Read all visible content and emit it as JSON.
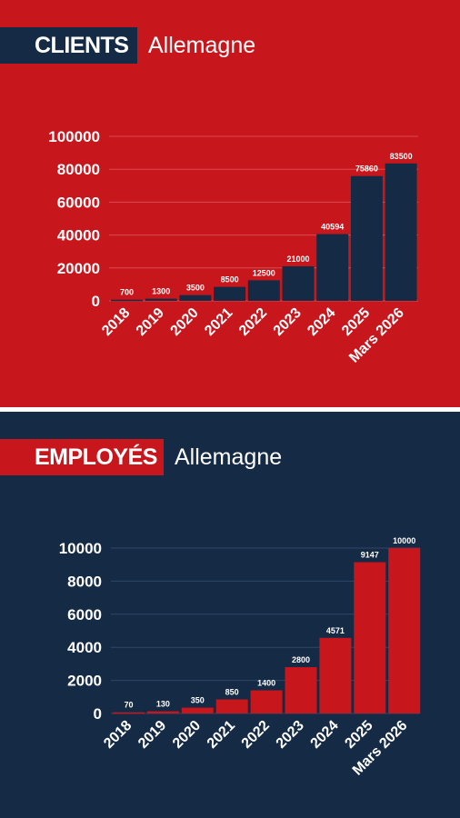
{
  "clients": {
    "title": "CLIENTS",
    "subtitle": "Allemagne",
    "colors": {
      "background": "#c8161d",
      "bar": "#152a45",
      "title_box": "#152a45",
      "text": "#ffffff",
      "grid": "#d94a4f"
    }
  },
  "employes": {
    "title": "EMPLOYÉS",
    "subtitle": "Allemagne",
    "colors": {
      "background": "#152a45",
      "bar": "#c8161d",
      "title_box": "#c8161d",
      "text": "#ffffff",
      "grid": "#2e4766"
    }
  },
  "chart_data": [
    {
      "type": "bar",
      "title": "CLIENTS Allemagne",
      "categories": [
        "2018",
        "2019",
        "2020",
        "2021",
        "2022",
        "2023",
        "2024",
        "2025",
        "Mars 2026"
      ],
      "values": [
        700,
        1300,
        3500,
        8500,
        12500,
        21000,
        40594,
        75860,
        83500
      ],
      "data_labels": [
        "700",
        "1300",
        "3500",
        "8500",
        "12500",
        "21000",
        "40594",
        "75860",
        "83500"
      ],
      "yticks": [
        "0",
        "20000",
        "40000",
        "60000",
        "80000",
        "100000"
      ],
      "ylim": [
        0,
        100000
      ],
      "grid": true,
      "legend": "none"
    },
    {
      "type": "bar",
      "title": "EMPLOYÉS Allemagne",
      "categories": [
        "2018",
        "2019",
        "2020",
        "2021",
        "2022",
        "2023",
        "2024",
        "2025",
        "Mars 2026"
      ],
      "values": [
        70,
        130,
        350,
        850,
        1400,
        2800,
        4571,
        9147,
        10000
      ],
      "data_labels": [
        "70",
        "130",
        "350",
        "850",
        "1400",
        "2800",
        "4571",
        "9147",
        "10000"
      ],
      "yticks": [
        "0",
        "2000",
        "4000",
        "6000",
        "8000",
        "10000"
      ],
      "ylim": [
        0,
        10000
      ],
      "grid": true,
      "legend": "none"
    }
  ]
}
